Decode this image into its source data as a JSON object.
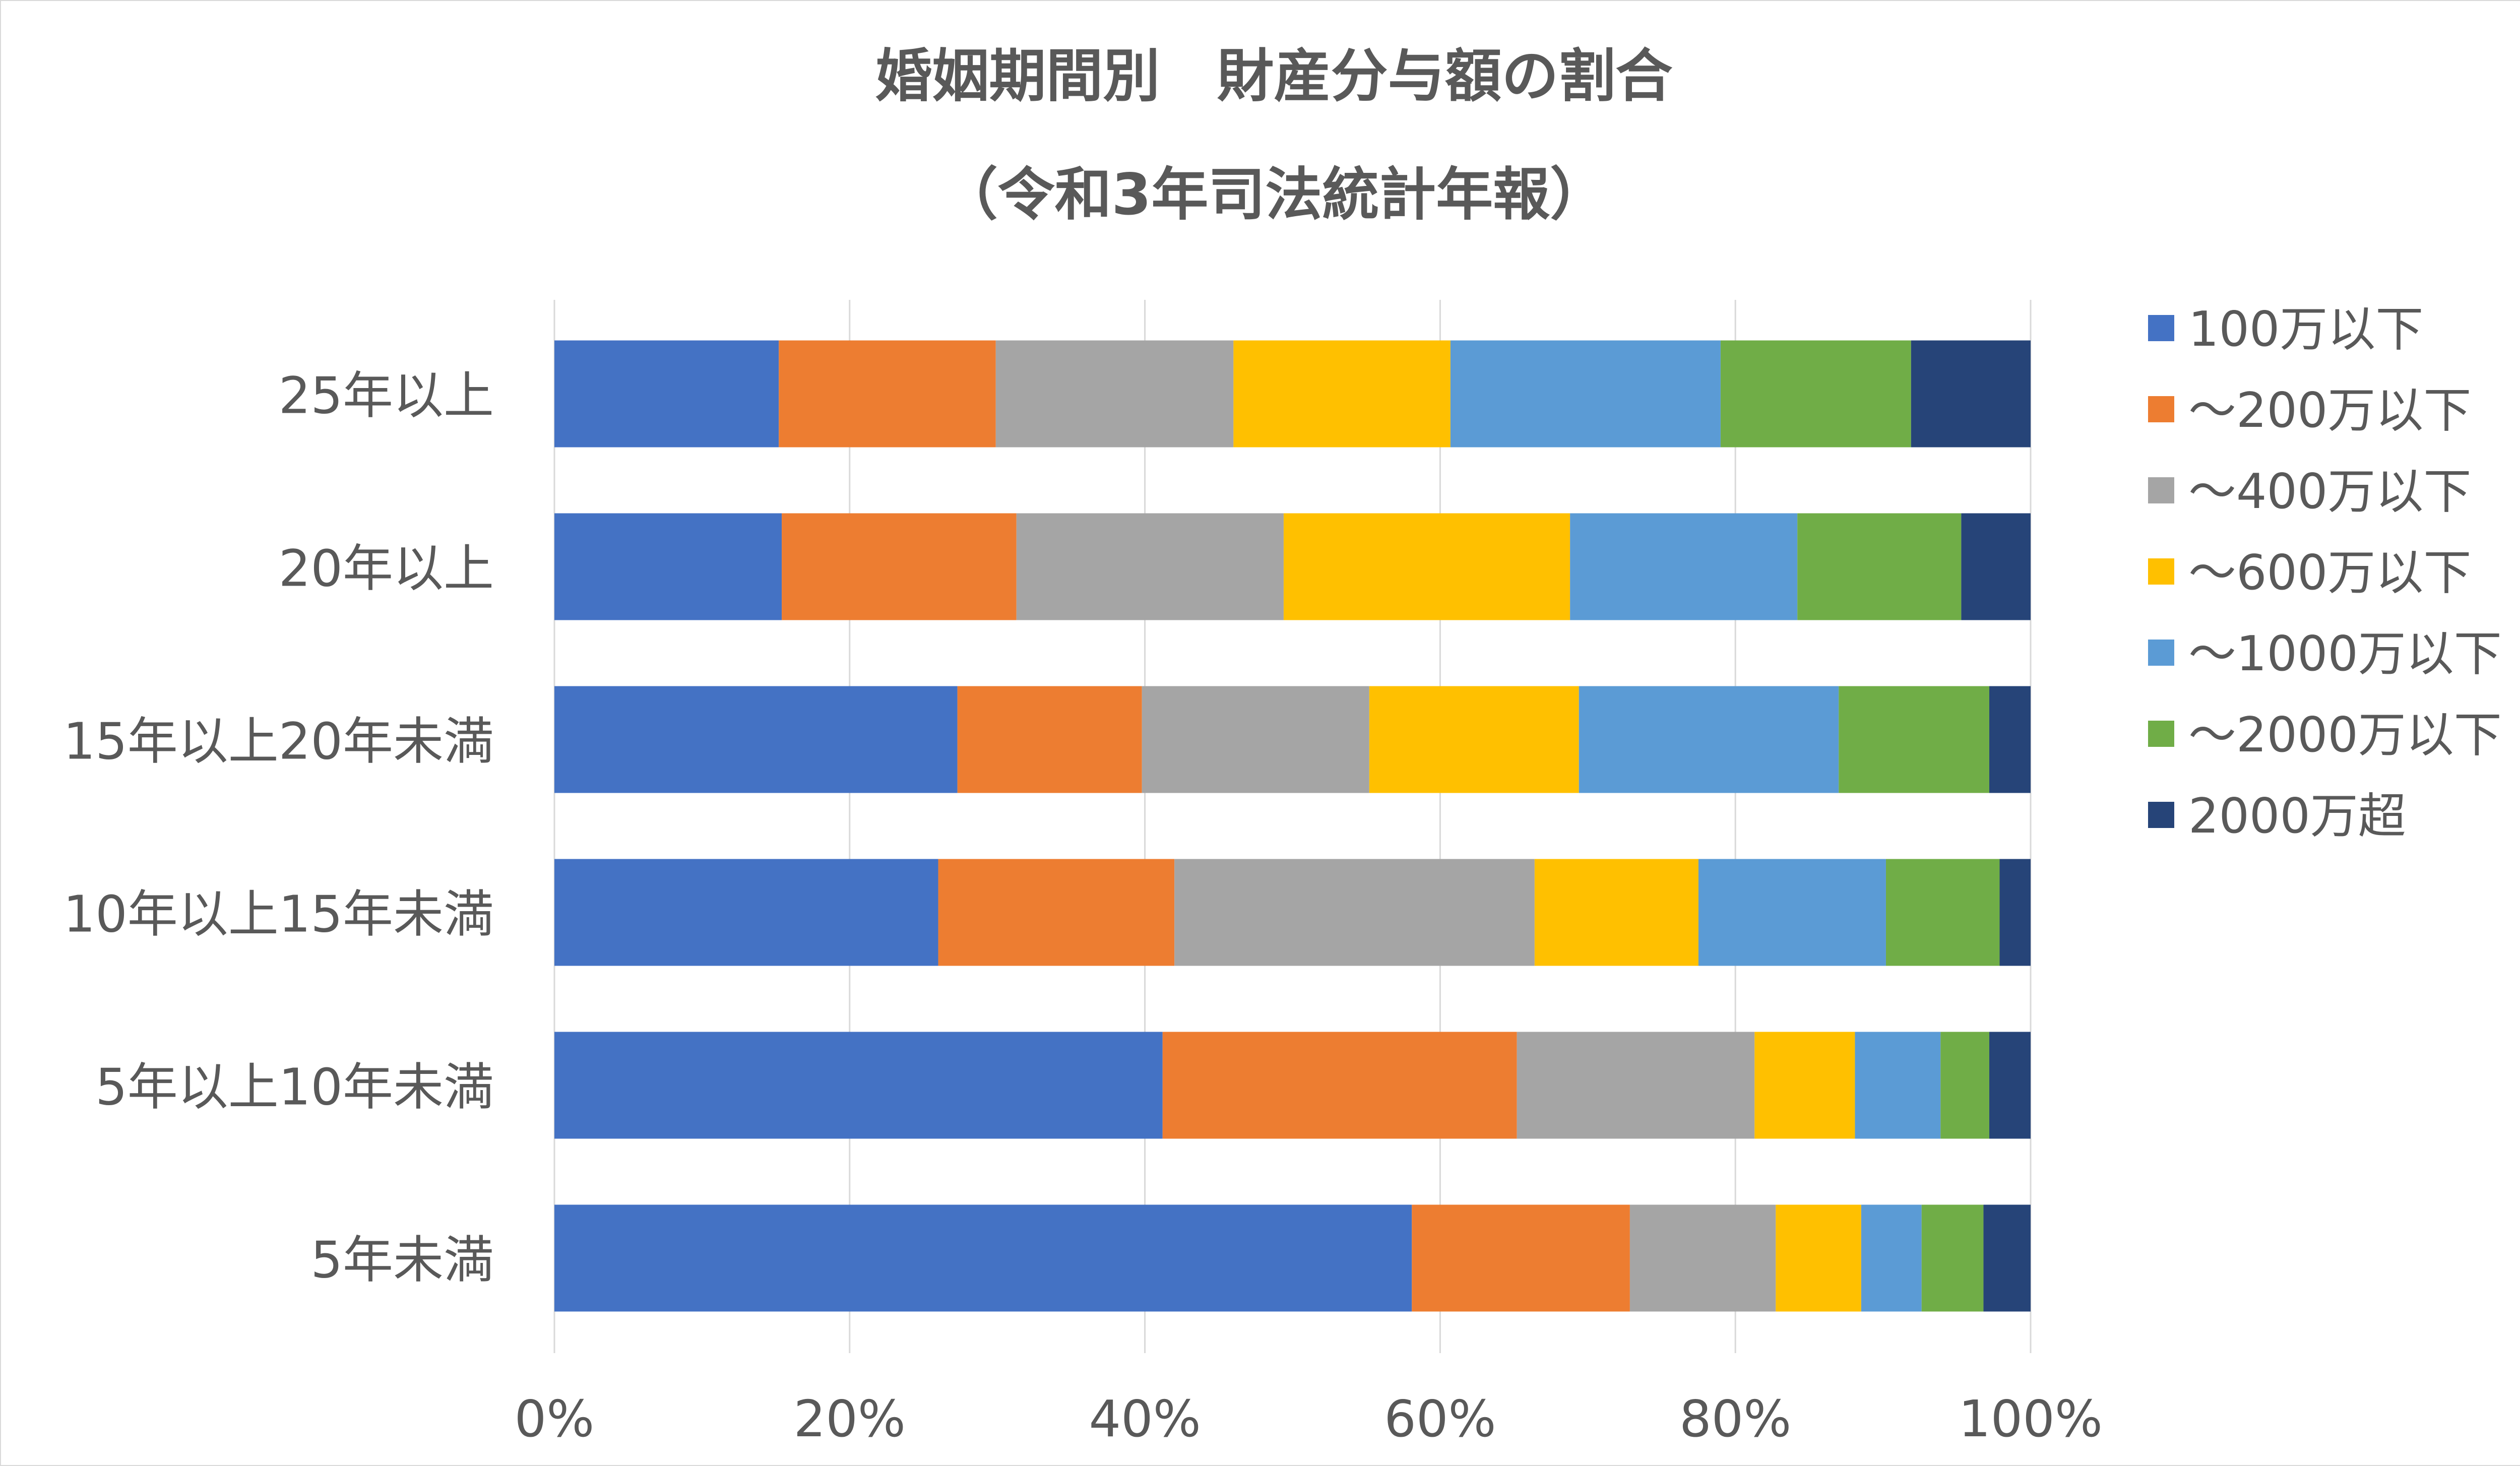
{
  "chart_data": {
    "type": "bar",
    "orientation": "horizontal",
    "stacked": "percent",
    "title": [
      "婚姻期間別　財産分与額の割合",
      "（令和3年司法統計年報）"
    ],
    "categories": [
      "25年以上",
      "20年以上",
      "15年以上20年未満",
      "10年以上15年未満",
      "5年以上10年未満",
      "5年未満"
    ],
    "x_ticks": [
      "0%",
      "20%",
      "40%",
      "60%",
      "80%",
      "100%"
    ],
    "xlim": [
      0,
      100
    ],
    "grid": true,
    "legend_position": "right",
    "series": [
      {
        "name": "100万以下",
        "color": "#4472C4",
        "values": [
          15.2,
          15.4,
          27.3,
          26.0,
          41.2,
          58.2
        ]
      },
      {
        "name": "～200万以下",
        "color": "#ED7D31",
        "values": [
          14.7,
          15.9,
          12.5,
          16.0,
          24.0,
          14.8
        ]
      },
      {
        "name": "～400万以下",
        "color": "#A5A5A5",
        "values": [
          16.1,
          18.1,
          15.4,
          24.4,
          16.1,
          9.9
        ]
      },
      {
        "name": "～600万以下",
        "color": "#FFC000",
        "values": [
          14.7,
          19.4,
          14.2,
          11.1,
          6.8,
          5.8
        ]
      },
      {
        "name": "～1000万以下",
        "color": "#5B9BD5",
        "values": [
          18.3,
          15.4,
          17.6,
          12.7,
          5.8,
          4.1
        ]
      },
      {
        "name": "～2000万以下",
        "color": "#70AD47",
        "values": [
          12.9,
          11.1,
          10.2,
          7.7,
          3.3,
          4.2
        ]
      },
      {
        "name": "2000万超",
        "color": "#264478",
        "values": [
          8.1,
          4.7,
          2.8,
          2.1,
          2.8,
          3.2
        ]
      }
    ]
  }
}
